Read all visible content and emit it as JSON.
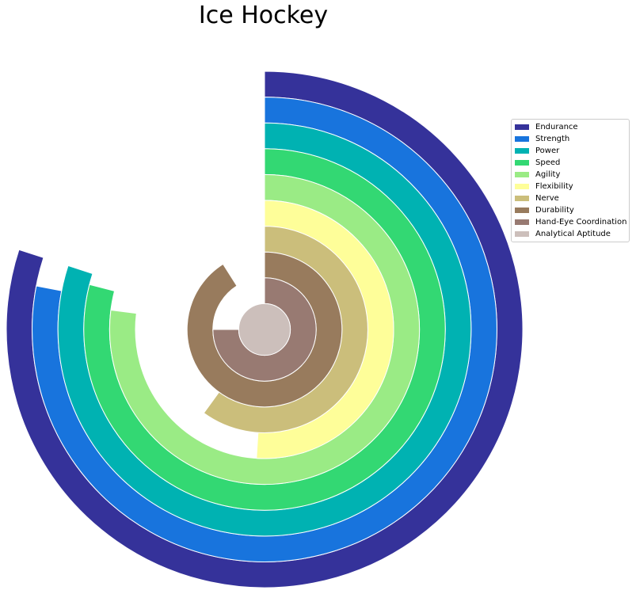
{
  "chart_data": {
    "type": "radial_bar",
    "title": "Ice Hockey",
    "series": [
      {
        "name": "Endurance",
        "value": 0.8,
        "color": "#35329a"
      },
      {
        "name": "Strength",
        "value": 0.78,
        "color": "#1874dd"
      },
      {
        "name": "Power",
        "value": 0.8,
        "color": "#00b2b2"
      },
      {
        "name": "Speed",
        "value": 0.79,
        "color": "#33d873"
      },
      {
        "name": "Agility",
        "value": 0.77,
        "color": "#9aeb85"
      },
      {
        "name": "Flexibility",
        "value": 0.51,
        "color": "#fefe99"
      },
      {
        "name": "Nerve",
        "value": 0.6,
        "color": "#cbbe7b"
      },
      {
        "name": "Durability",
        "value": 0.91,
        "color": "#987b5d"
      },
      {
        "name": "Hand-Eye Coordination",
        "value": 0.75,
        "color": "#987a72"
      },
      {
        "name": "Analytical Aptitude",
        "value": 1.0,
        "color": "#ccbfbb"
      }
    ],
    "value_range": [
      0,
      1
    ],
    "direction": "clockwise from top",
    "legend_position": "right"
  }
}
